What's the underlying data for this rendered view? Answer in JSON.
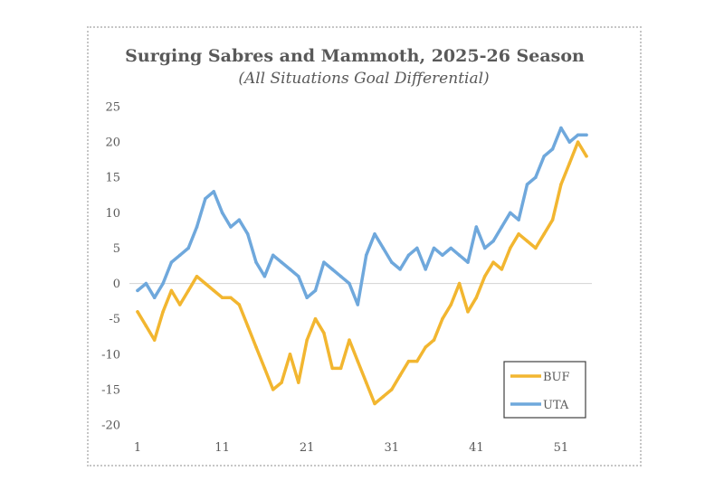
{
  "chart_data": {
    "type": "line",
    "title": "Surging Sabres and Mammoth, 2025-26 Season",
    "subtitle": "(All Situations Goal Differential)",
    "xlabel": "",
    "ylabel": "",
    "x": [
      1,
      2,
      3,
      4,
      5,
      6,
      7,
      8,
      9,
      10,
      11,
      12,
      13,
      14,
      15,
      16,
      17,
      18,
      19,
      20,
      21,
      22,
      23,
      24,
      25,
      26,
      27,
      28,
      29,
      30,
      31,
      32,
      33,
      34,
      35,
      36,
      37,
      38,
      39,
      40,
      41,
      42,
      43,
      44,
      45,
      46,
      47,
      48,
      49,
      50,
      51,
      52,
      53,
      54
    ],
    "x_ticks": [
      "1",
      "11",
      "21",
      "31",
      "41",
      "51"
    ],
    "x_tick_values": [
      1,
      11,
      21,
      31,
      41,
      51
    ],
    "y_ticks": [
      "25",
      "20",
      "15",
      "10",
      "5",
      "0",
      "-5",
      "-10",
      "-15",
      "-20"
    ],
    "y_tick_values": [
      25,
      20,
      15,
      10,
      5,
      0,
      -5,
      -10,
      -15,
      -20
    ],
    "ylim": [
      -20,
      25
    ],
    "xlim": [
      1,
      54
    ],
    "grid": false,
    "zero_line": true,
    "legend_position": "bottom-right",
    "series": [
      {
        "name": "BUF",
        "color": "#F2B630",
        "values": [
          -4,
          -6,
          -8,
          -4,
          -1,
          -3,
          -1,
          1,
          0,
          -1,
          -2,
          -2,
          -3,
          -6,
          -9,
          -12,
          -15,
          -14,
          -10,
          -14,
          -8,
          -5,
          -7,
          -12,
          -12,
          -8,
          -11,
          -14,
          -17,
          -16,
          -15,
          -13,
          -11,
          -11,
          -9,
          -8,
          -5,
          -3,
          0,
          -4,
          -2,
          1,
          3,
          2,
          5,
          7,
          6,
          5,
          7,
          9,
          14,
          17,
          20,
          18
        ]
      },
      {
        "name": "UTA",
        "color": "#6FA8DC",
        "values": [
          -1,
          0,
          -2,
          0,
          3,
          4,
          5,
          8,
          12,
          13,
          10,
          8,
          9,
          7,
          3,
          1,
          4,
          3,
          2,
          1,
          -2,
          -1,
          3,
          2,
          1,
          0,
          -3,
          4,
          7,
          5,
          3,
          2,
          4,
          5,
          2,
          5,
          4,
          5,
          4,
          3,
          8,
          5,
          6,
          8,
          10,
          9,
          14,
          15,
          18,
          19,
          22,
          20,
          21,
          21
        ]
      }
    ]
  }
}
